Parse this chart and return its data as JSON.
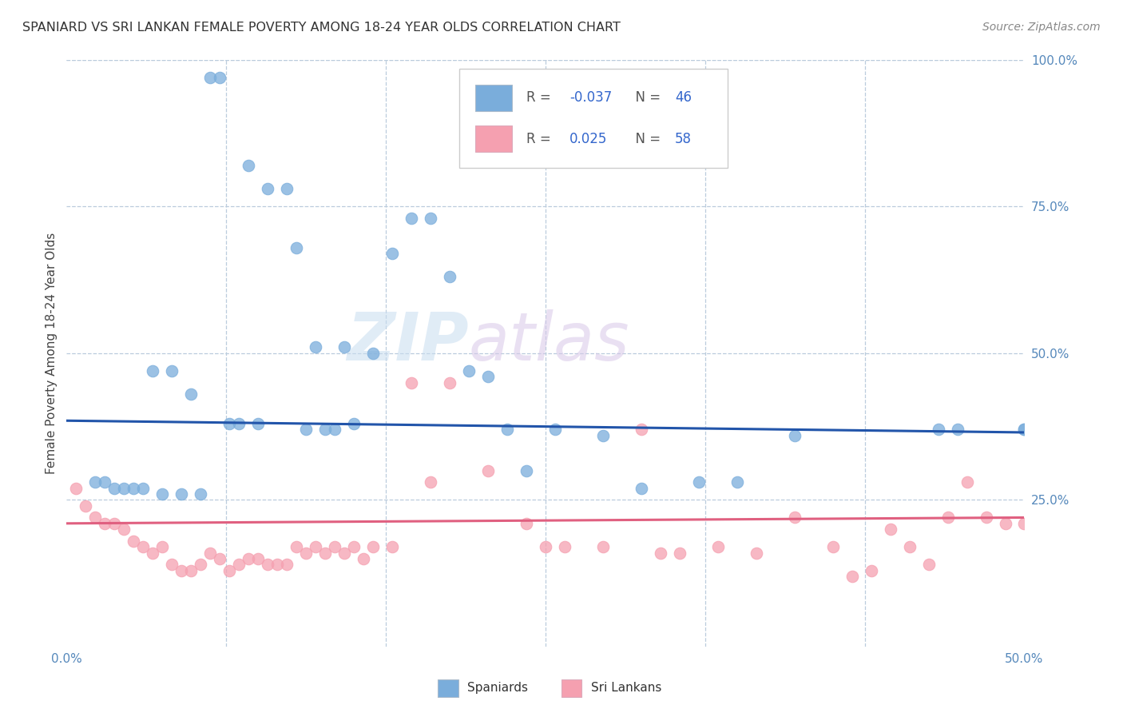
{
  "title": "SPANIARD VS SRI LANKAN FEMALE POVERTY AMONG 18-24 YEAR OLDS CORRELATION CHART",
  "source": "Source: ZipAtlas.com",
  "ylabel": "Female Poverty Among 18-24 Year Olds",
  "xlim": [
    0.0,
    50.0
  ],
  "ylim": [
    0.0,
    100.0
  ],
  "legend_r_blue": "-0.037",
  "legend_n_blue": "46",
  "legend_r_pink": "0.025",
  "legend_n_pink": "58",
  "watermark_zip": "ZIP",
  "watermark_atlas": "atlas",
  "blue_color": "#7aaddb",
  "pink_color": "#f5a0b0",
  "line_blue": "#2255aa",
  "line_pink": "#e06080",
  "blue_line_start": 38.5,
  "blue_line_end": 36.5,
  "pink_line_start": 21.0,
  "pink_line_end": 22.0,
  "spaniards_x": [
    7.5,
    8.0,
    9.5,
    10.5,
    11.5,
    12.0,
    13.0,
    14.5,
    4.5,
    5.5,
    6.5,
    8.5,
    9.0,
    10.0,
    12.5,
    13.5,
    14.0,
    15.0,
    1.5,
    2.0,
    2.5,
    3.0,
    3.5,
    4.0,
    5.0,
    6.0,
    7.0,
    16.0,
    17.0,
    18.0,
    19.0,
    20.0,
    21.0,
    22.0,
    23.0,
    24.0,
    25.5,
    28.0,
    30.0,
    33.0,
    35.0,
    38.0,
    45.5,
    46.5,
    50.0,
    50.0
  ],
  "spaniards_y": [
    97,
    97,
    82,
    78,
    78,
    68,
    51,
    51,
    47,
    47,
    43,
    38,
    38,
    38,
    37,
    37,
    37,
    38,
    28,
    28,
    27,
    27,
    27,
    27,
    26,
    26,
    26,
    50,
    67,
    73,
    73,
    63,
    47,
    46,
    37,
    30,
    37,
    36,
    27,
    28,
    28,
    36,
    37,
    37,
    37,
    37
  ],
  "srilankans_x": [
    0.5,
    1.0,
    1.5,
    2.0,
    2.5,
    3.0,
    3.5,
    4.0,
    4.5,
    5.0,
    5.5,
    6.0,
    6.5,
    7.0,
    7.5,
    8.0,
    8.5,
    9.0,
    9.5,
    10.0,
    10.5,
    11.0,
    11.5,
    12.0,
    12.5,
    13.0,
    13.5,
    14.0,
    14.5,
    15.0,
    15.5,
    16.0,
    17.0,
    18.0,
    19.0,
    20.0,
    22.0,
    24.0,
    25.0,
    26.0,
    28.0,
    30.0,
    31.0,
    32.0,
    34.0,
    36.0,
    38.0,
    40.0,
    41.0,
    42.0,
    43.0,
    44.0,
    45.0,
    46.0,
    47.0,
    48.0,
    49.0,
    50.0
  ],
  "srilankans_y": [
    27,
    24,
    22,
    21,
    21,
    20,
    18,
    17,
    16,
    17,
    14,
    13,
    13,
    14,
    16,
    15,
    13,
    14,
    15,
    15,
    14,
    14,
    14,
    17,
    16,
    17,
    16,
    17,
    16,
    17,
    15,
    17,
    17,
    45,
    28,
    45,
    30,
    21,
    17,
    17,
    17,
    37,
    16,
    16,
    17,
    16,
    22,
    17,
    12,
    13,
    20,
    17,
    14,
    22,
    28,
    22,
    21,
    21
  ]
}
